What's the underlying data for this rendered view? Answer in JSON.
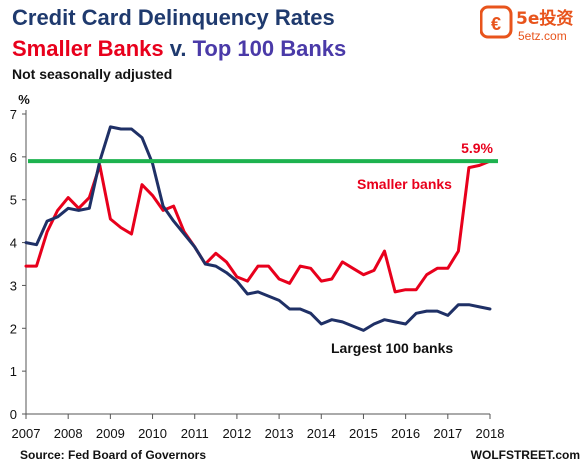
{
  "header": {
    "title": "Credit Card Delinquency Rates",
    "subtitle_part1": "Smaller Banks",
    "subtitle_part2": " v. ",
    "subtitle_part3": "Top 100 Banks",
    "note": "Not seasonally adjusted"
  },
  "logo": {
    "brand": "5e投资",
    "domain": "5etz.com",
    "accent_color": "#e8541c"
  },
  "footer": {
    "source": "Source: Fed Board of Governors",
    "credit": "WOLFSTREET.com"
  },
  "colors": {
    "smaller_banks": "#e8001c",
    "largest_banks": "#1f3066",
    "reference_line": "#1db24f",
    "title_navy": "#1f3a6e",
    "title_purple": "#4a3aa8"
  },
  "chart_data": {
    "type": "line",
    "title": "Credit Card Delinquency Rates",
    "ylabel": "%",
    "ylim": [
      0,
      7
    ],
    "xlim": [
      2007,
      2018
    ],
    "y_ticks": [
      "0",
      "1",
      "2",
      "3",
      "4",
      "5",
      "6",
      "7"
    ],
    "x_ticks": [
      "2007",
      "2008",
      "2009",
      "2010",
      "2011",
      "2012",
      "2013",
      "2014",
      "2015",
      "2016",
      "2017",
      "2018"
    ],
    "grid": false,
    "reference_line": {
      "value": 5.9,
      "label": "5.9%"
    },
    "series": [
      {
        "name": "Smaller banks",
        "x": [
          2007.0,
          2007.25,
          2007.5,
          2007.75,
          2008.0,
          2008.25,
          2008.5,
          2008.75,
          2009.0,
          2009.25,
          2009.5,
          2009.75,
          2010.0,
          2010.25,
          2010.5,
          2010.75,
          2011.0,
          2011.25,
          2011.5,
          2011.75,
          2012.0,
          2012.25,
          2012.5,
          2012.75,
          2013.0,
          2013.25,
          2013.5,
          2013.75,
          2014.0,
          2014.25,
          2014.5,
          2014.75,
          2015.0,
          2015.25,
          2015.5,
          2015.75,
          2016.0,
          2016.25,
          2016.5,
          2016.75,
          2017.0,
          2017.25,
          2017.5,
          2017.75,
          2018.0
        ],
        "values": [
          3.45,
          3.45,
          4.25,
          4.75,
          5.05,
          4.8,
          5.05,
          5.8,
          4.55,
          4.35,
          4.2,
          5.35,
          5.1,
          4.75,
          4.85,
          4.25,
          3.9,
          3.5,
          3.75,
          3.55,
          3.2,
          3.1,
          3.45,
          3.45,
          3.15,
          3.05,
          3.45,
          3.4,
          3.1,
          3.15,
          3.55,
          3.4,
          3.25,
          3.35,
          3.8,
          2.85,
          2.9,
          2.9,
          3.25,
          3.4,
          3.4,
          3.8,
          5.75,
          5.8,
          5.9
        ]
      },
      {
        "name": "Largest 100 banks",
        "x": [
          2007.0,
          2007.25,
          2007.5,
          2007.75,
          2008.0,
          2008.25,
          2008.5,
          2008.75,
          2009.0,
          2009.25,
          2009.5,
          2009.75,
          2010.0,
          2010.25,
          2010.5,
          2010.75,
          2011.0,
          2011.25,
          2011.5,
          2011.75,
          2012.0,
          2012.25,
          2012.5,
          2012.75,
          2013.0,
          2013.25,
          2013.5,
          2013.75,
          2014.0,
          2014.25,
          2014.5,
          2014.75,
          2015.0,
          2015.25,
          2015.5,
          2015.75,
          2016.0,
          2016.25,
          2016.5,
          2016.75,
          2017.0,
          2017.25,
          2017.5,
          2017.75,
          2018.0
        ],
        "values": [
          4.0,
          3.95,
          4.5,
          4.6,
          4.8,
          4.75,
          4.8,
          5.9,
          6.7,
          6.65,
          6.65,
          6.45,
          5.85,
          4.85,
          4.5,
          4.2,
          3.9,
          3.5,
          3.45,
          3.3,
          3.1,
          2.8,
          2.85,
          2.75,
          2.65,
          2.45,
          2.45,
          2.35,
          2.1,
          2.2,
          2.15,
          2.05,
          1.95,
          2.1,
          2.2,
          2.15,
          2.1,
          2.35,
          2.4,
          2.4,
          2.3,
          2.55,
          2.55,
          2.5,
          2.45
        ]
      }
    ],
    "annotations": [
      {
        "text": "Smaller banks",
        "series": "Smaller banks"
      },
      {
        "text": "Largest 100 banks",
        "series": "Largest 100 banks"
      },
      {
        "text": "5.9%",
        "series": "Smaller banks"
      }
    ]
  }
}
